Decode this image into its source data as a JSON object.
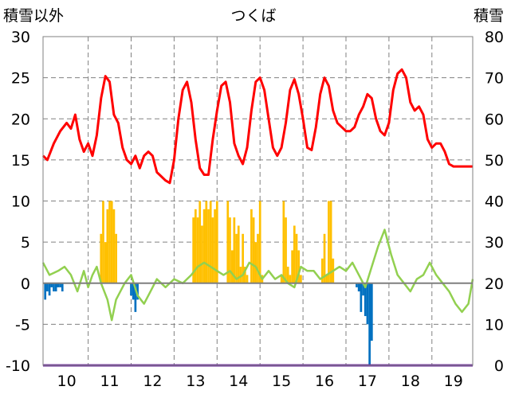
{
  "chart_data": {
    "type": "bar+line",
    "title": "つくば",
    "left_axis": {
      "label": "積雪以外",
      "ticks": [
        30,
        25,
        20,
        15,
        10,
        5,
        0,
        -5,
        -10
      ],
      "range": [
        -10,
        30
      ]
    },
    "right_axis": {
      "label": "積雪",
      "ticks": [
        80,
        70,
        60,
        50,
        40,
        30,
        20,
        10,
        0
      ],
      "range": [
        0,
        80
      ]
    },
    "x_tick_labels": [
      "10",
      "11",
      "12",
      "13",
      "14",
      "15",
      "16",
      "17",
      "18",
      "19"
    ],
    "grid": "dashed",
    "colors": {
      "red_series": "#ff0000",
      "green_series": "#92d050",
      "orange_bars": "#ffc000",
      "blue_bars": "#0070c0",
      "purple_line": "#7030a0",
      "grid": "#808080"
    },
    "series": [
      {
        "color": "red",
        "axis": "left",
        "style": "line",
        "x": [
          9.45,
          9.55,
          9.7,
          9.85,
          10.0,
          10.1,
          10.2,
          10.3,
          10.4,
          10.5,
          10.6,
          10.7,
          10.8,
          10.9,
          11.0,
          11.1,
          11.2,
          11.3,
          11.4,
          11.5,
          11.6,
          11.7,
          11.8,
          11.9,
          12.0,
          12.1,
          12.2,
          12.3,
          12.4,
          12.5,
          12.6,
          12.7,
          12.8,
          12.9,
          13.0,
          13.1,
          13.2,
          13.3,
          13.4,
          13.5,
          13.6,
          13.7,
          13.8,
          13.9,
          14.0,
          14.1,
          14.2,
          14.3,
          14.4,
          14.5,
          14.6,
          14.7,
          14.8,
          14.9,
          15.0,
          15.1,
          15.2,
          15.3,
          15.4,
          15.5,
          15.6,
          15.7,
          15.8,
          15.9,
          16.0,
          16.1,
          16.2,
          16.3,
          16.4,
          16.5,
          16.6,
          16.7,
          16.8,
          16.9,
          17.0,
          17.1,
          17.2,
          17.3,
          17.4,
          17.5,
          17.6,
          17.7,
          17.8,
          17.9,
          18.0,
          18.1,
          18.2,
          18.3,
          18.4,
          18.5,
          18.6,
          18.7,
          18.8,
          18.9,
          19.0,
          19.1,
          19.2,
          19.3,
          19.4,
          19.45
        ],
        "values": [
          15.5,
          15,
          17,
          18.5,
          19.5,
          18.8,
          20.5,
          17.5,
          16,
          17,
          15.5,
          18,
          22.5,
          25.2,
          24.5,
          20.5,
          19.5,
          16.5,
          15,
          14.5,
          15.5,
          14,
          15.5,
          16,
          15.5,
          13.5,
          13,
          12.5,
          12.2,
          15,
          20,
          23.5,
          24.5,
          22,
          17.5,
          14,
          13.2,
          13.2,
          17.5,
          21,
          24,
          24.5,
          22,
          17,
          15.5,
          14.5,
          16.5,
          21,
          24.5,
          25,
          23.5,
          20,
          16.5,
          15.5,
          16.5,
          19.5,
          23.5,
          24.8,
          23,
          20,
          16.5,
          16.2,
          19,
          23,
          25,
          24,
          21,
          19.5,
          19,
          18.5,
          18.5,
          19,
          20.5,
          21.5,
          23,
          22.5,
          20,
          18.5,
          18,
          19.5,
          23.5,
          25.5,
          26,
          25,
          22,
          21,
          21.5,
          20.5,
          17.5,
          16.5,
          17,
          17,
          16,
          14.5,
          14.2,
          14.2,
          14.2,
          14.2,
          14.2,
          14.2
        ]
      },
      {
        "color": "green",
        "axis": "left",
        "style": "line",
        "x": [
          9.45,
          9.6,
          9.8,
          9.95,
          10.1,
          10.25,
          10.4,
          10.5,
          10.6,
          10.7,
          10.8,
          10.95,
          11.05,
          11.15,
          11.25,
          11.35,
          11.5,
          11.65,
          11.8,
          11.95,
          12.1,
          12.3,
          12.5,
          12.7,
          12.9,
          13.05,
          13.2,
          13.35,
          13.5,
          13.65,
          13.8,
          13.95,
          14.1,
          14.25,
          14.4,
          14.55,
          14.7,
          14.85,
          15.0,
          15.15,
          15.3,
          15.45,
          15.6,
          15.75,
          15.9,
          16.05,
          16.2,
          16.35,
          16.5,
          16.65,
          16.8,
          16.95,
          17.1,
          17.25,
          17.4,
          17.55,
          17.7,
          17.85,
          18.0,
          18.15,
          18.3,
          18.45,
          18.6,
          18.75,
          18.9,
          19.05,
          19.2,
          19.35,
          19.45
        ],
        "values": [
          2.5,
          1,
          1.5,
          2,
          1,
          -1,
          1.5,
          -0.5,
          1,
          2,
          0,
          -2,
          -4.5,
          -2,
          -1,
          0,
          1,
          -1.5,
          -2.5,
          -1,
          0.5,
          -0.5,
          0.5,
          0,
          1,
          2,
          2.5,
          2,
          1.5,
          1,
          1.5,
          0.5,
          1,
          2.5,
          2,
          0.5,
          1.5,
          0.5,
          1,
          0,
          -0.5,
          2,
          1.5,
          1.5,
          0.5,
          1,
          1.5,
          2,
          1.5,
          2.5,
          1,
          -0.5,
          2,
          4.5,
          6.5,
          3.5,
          1,
          0,
          -1,
          0.5,
          1,
          2.5,
          1,
          0,
          -1,
          -2.5,
          -3.5,
          -2.5,
          0.5
        ]
      },
      {
        "color": "orange",
        "axis": "right",
        "style": "bars",
        "x": [
          10.8,
          10.85,
          10.9,
          10.95,
          11.0,
          11.05,
          11.1,
          11.15,
          12.95,
          13.0,
          13.05,
          13.1,
          13.15,
          13.2,
          13.25,
          13.3,
          13.35,
          13.4,
          13.45,
          13.5,
          13.6,
          13.75,
          13.8,
          13.85,
          13.9,
          13.95,
          14.0,
          14.05,
          14.1,
          14.15,
          14.2,
          14.3,
          14.35,
          14.4,
          14.45,
          14.5,
          14.55,
          14.75,
          14.8,
          14.85,
          14.9,
          14.95,
          15.0,
          15.05,
          15.1,
          15.15,
          15.2,
          15.25,
          15.3,
          15.35,
          15.4,
          15.45,
          15.8,
          15.85,
          15.9,
          15.95,
          16.0,
          16.05,
          16.1,
          16.15,
          16.2,
          16.3,
          16.35,
          16.4,
          16.45,
          16.5,
          16.7,
          16.75,
          16.8,
          16.85,
          16.9,
          16.95,
          17.0,
          17.05,
          17.1,
          17.15,
          17.2,
          17.25,
          17.3,
          17.35,
          17.4,
          17.45,
          17.5,
          17.55,
          17.6,
          17.65,
          17.7,
          17.75,
          17.8,
          17.85,
          17.9,
          17.95,
          18.0,
          18.05,
          18.1,
          18.15,
          18.2,
          18.25,
          18.3,
          18.35,
          18.4,
          18.45,
          18.5,
          18.55,
          18.6,
          18.65,
          18.7
        ],
        "values": [
          32,
          40,
          30,
          38,
          40,
          40,
          38,
          32,
          36,
          38,
          36,
          40,
          34,
          38,
          40,
          38,
          40,
          36,
          38,
          40,
          0,
          40,
          36,
          28,
          36,
          32,
          34,
          24,
          32,
          24,
          22,
          38,
          36,
          30,
          32,
          40,
          22,
          0,
          0,
          0,
          0,
          0,
          22,
          40,
          36,
          24,
          22,
          28,
          34,
          32,
          28,
          22,
          0,
          0,
          0,
          26,
          32,
          22,
          40,
          40,
          26,
          0,
          0,
          0,
          0,
          0,
          0,
          0,
          0,
          0,
          0,
          0,
          0,
          0,
          0,
          0,
          0,
          0,
          0,
          0,
          0,
          0,
          0,
          0,
          0,
          0,
          0,
          0,
          0,
          0,
          0,
          0,
          0,
          0,
          0,
          0,
          0,
          0,
          0,
          0,
          0,
          0,
          0,
          0,
          0,
          0,
          0
        ]
      },
      {
        "color": "blue",
        "axis": "left",
        "style": "bars",
        "x": [
          9.5,
          9.55,
          9.6,
          9.65,
          9.7,
          9.75,
          9.8,
          9.85,
          9.9,
          11.5,
          11.55,
          11.6,
          11.65,
          16.75,
          16.8,
          16.85,
          16.9,
          16.95,
          17.0,
          17.05,
          17.1
        ],
        "values": [
          -2,
          -1,
          -1.5,
          -0.5,
          -1,
          -1,
          -0.5,
          -0.5,
          -1,
          -1.5,
          -2,
          -3.5,
          -2,
          -0.5,
          -1,
          -3.5,
          -1.5,
          -4,
          -5,
          -10,
          -7
        ]
      },
      {
        "color": "purple",
        "axis": "left",
        "style": "line",
        "x": [
          9.45,
          19.45
        ],
        "values": [
          -10,
          -10
        ]
      }
    ]
  }
}
